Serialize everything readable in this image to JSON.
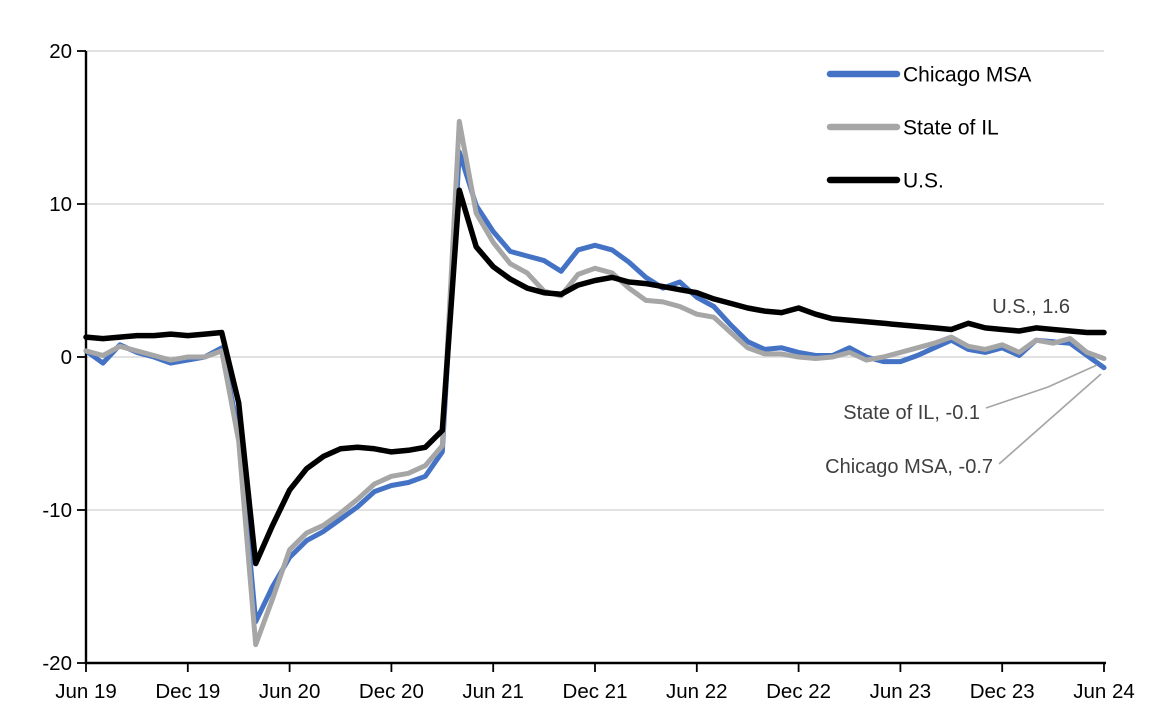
{
  "chart_data": {
    "type": "line",
    "title": "",
    "frequency": "monthly",
    "x_start": "Jun 19",
    "x_end": "Jun 24",
    "x_tick_labels": [
      "Jun 19",
      "Dec 19",
      "Jun 20",
      "Dec 20",
      "Jun 21",
      "Dec 21",
      "Jun 22",
      "Dec 22",
      "Jun 23",
      "Dec 23",
      "Jun 24"
    ],
    "y_tick_labels": [
      "20",
      "10",
      "0",
      "-10",
      "-20"
    ],
    "yticks": [
      20,
      10,
      0,
      -10,
      -20
    ],
    "ylim": [
      -20,
      20
    ],
    "grid": true,
    "legend_position": "top-right",
    "series": [
      {
        "name": "Chicago MSA",
        "color": "#4472C4",
        "values": [
          0.4,
          -0.4,
          0.8,
          0.3,
          0.0,
          -0.4,
          -0.2,
          0.0,
          0.6,
          -5.0,
          -17.3,
          -15.0,
          -13.1,
          -12.0,
          -11.4,
          -10.6,
          -9.8,
          -8.8,
          -8.4,
          -8.2,
          -7.8,
          -6.2,
          13.4,
          9.9,
          8.2,
          6.9,
          6.6,
          6.3,
          5.6,
          7.0,
          7.3,
          7.0,
          6.2,
          5.2,
          4.5,
          4.9,
          3.9,
          3.3,
          2.1,
          1.0,
          0.5,
          0.6,
          0.3,
          0.1,
          0.1,
          0.6,
          0.0,
          -0.3,
          -0.3,
          0.1,
          0.6,
          1.1,
          0.5,
          0.3,
          0.6,
          0.1,
          1.1,
          1.0,
          0.9,
          0.1,
          -0.7
        ]
      },
      {
        "name": "State of IL",
        "color": "#A6A6A6",
        "values": [
          0.4,
          0.1,
          0.7,
          0.4,
          0.1,
          -0.2,
          0.0,
          0.0,
          0.4,
          -5.5,
          -18.8,
          -15.8,
          -12.6,
          -11.5,
          -11.0,
          -10.2,
          -9.3,
          -8.3,
          -7.8,
          -7.6,
          -7.1,
          -5.8,
          15.4,
          9.4,
          7.5,
          6.1,
          5.5,
          4.3,
          4.0,
          5.4,
          5.8,
          5.5,
          4.5,
          3.7,
          3.6,
          3.3,
          2.8,
          2.6,
          1.6,
          0.6,
          0.2,
          0.2,
          0.0,
          -0.1,
          0.0,
          0.3,
          -0.2,
          0.0,
          0.3,
          0.6,
          0.9,
          1.3,
          0.7,
          0.5,
          0.8,
          0.3,
          1.1,
          0.9,
          1.2,
          0.3,
          -0.1
        ]
      },
      {
        "name": "U.S.",
        "color": "#000000",
        "values": [
          1.3,
          1.2,
          1.3,
          1.4,
          1.4,
          1.5,
          1.4,
          1.5,
          1.6,
          -3.0,
          -13.5,
          -11.0,
          -8.7,
          -7.3,
          -6.5,
          -6.0,
          -5.9,
          -6.0,
          -6.2,
          -6.1,
          -5.9,
          -4.8,
          10.9,
          7.2,
          5.9,
          5.1,
          4.5,
          4.2,
          4.1,
          4.7,
          5.0,
          5.2,
          4.9,
          4.8,
          4.6,
          4.4,
          4.2,
          3.8,
          3.5,
          3.2,
          3.0,
          2.9,
          3.2,
          2.8,
          2.5,
          2.4,
          2.3,
          2.2,
          2.1,
          2.0,
          1.9,
          1.8,
          2.2,
          1.9,
          1.8,
          1.7,
          1.9,
          1.8,
          1.7,
          1.6,
          1.6
        ]
      }
    ],
    "legend": [
      "Chicago MSA",
      "State of IL",
      "U.S."
    ],
    "annotations": [
      {
        "text": "U.S., 1.6",
        "series": "U.S.",
        "value": 1.6
      },
      {
        "text": "State of IL, -0.1",
        "series": "State of IL",
        "value": -0.1
      },
      {
        "text": "Chicago MSA, -0.7",
        "series": "Chicago MSA",
        "value": -0.7
      }
    ],
    "colors": {
      "chicago_msa": "#4472C4",
      "state_of_il": "#A6A6A6",
      "us": "#000000",
      "gridline": "#D9D9D9",
      "axis": "#000000",
      "annotation_text": "#404040",
      "leader_line": "#A6A6A6"
    }
  }
}
